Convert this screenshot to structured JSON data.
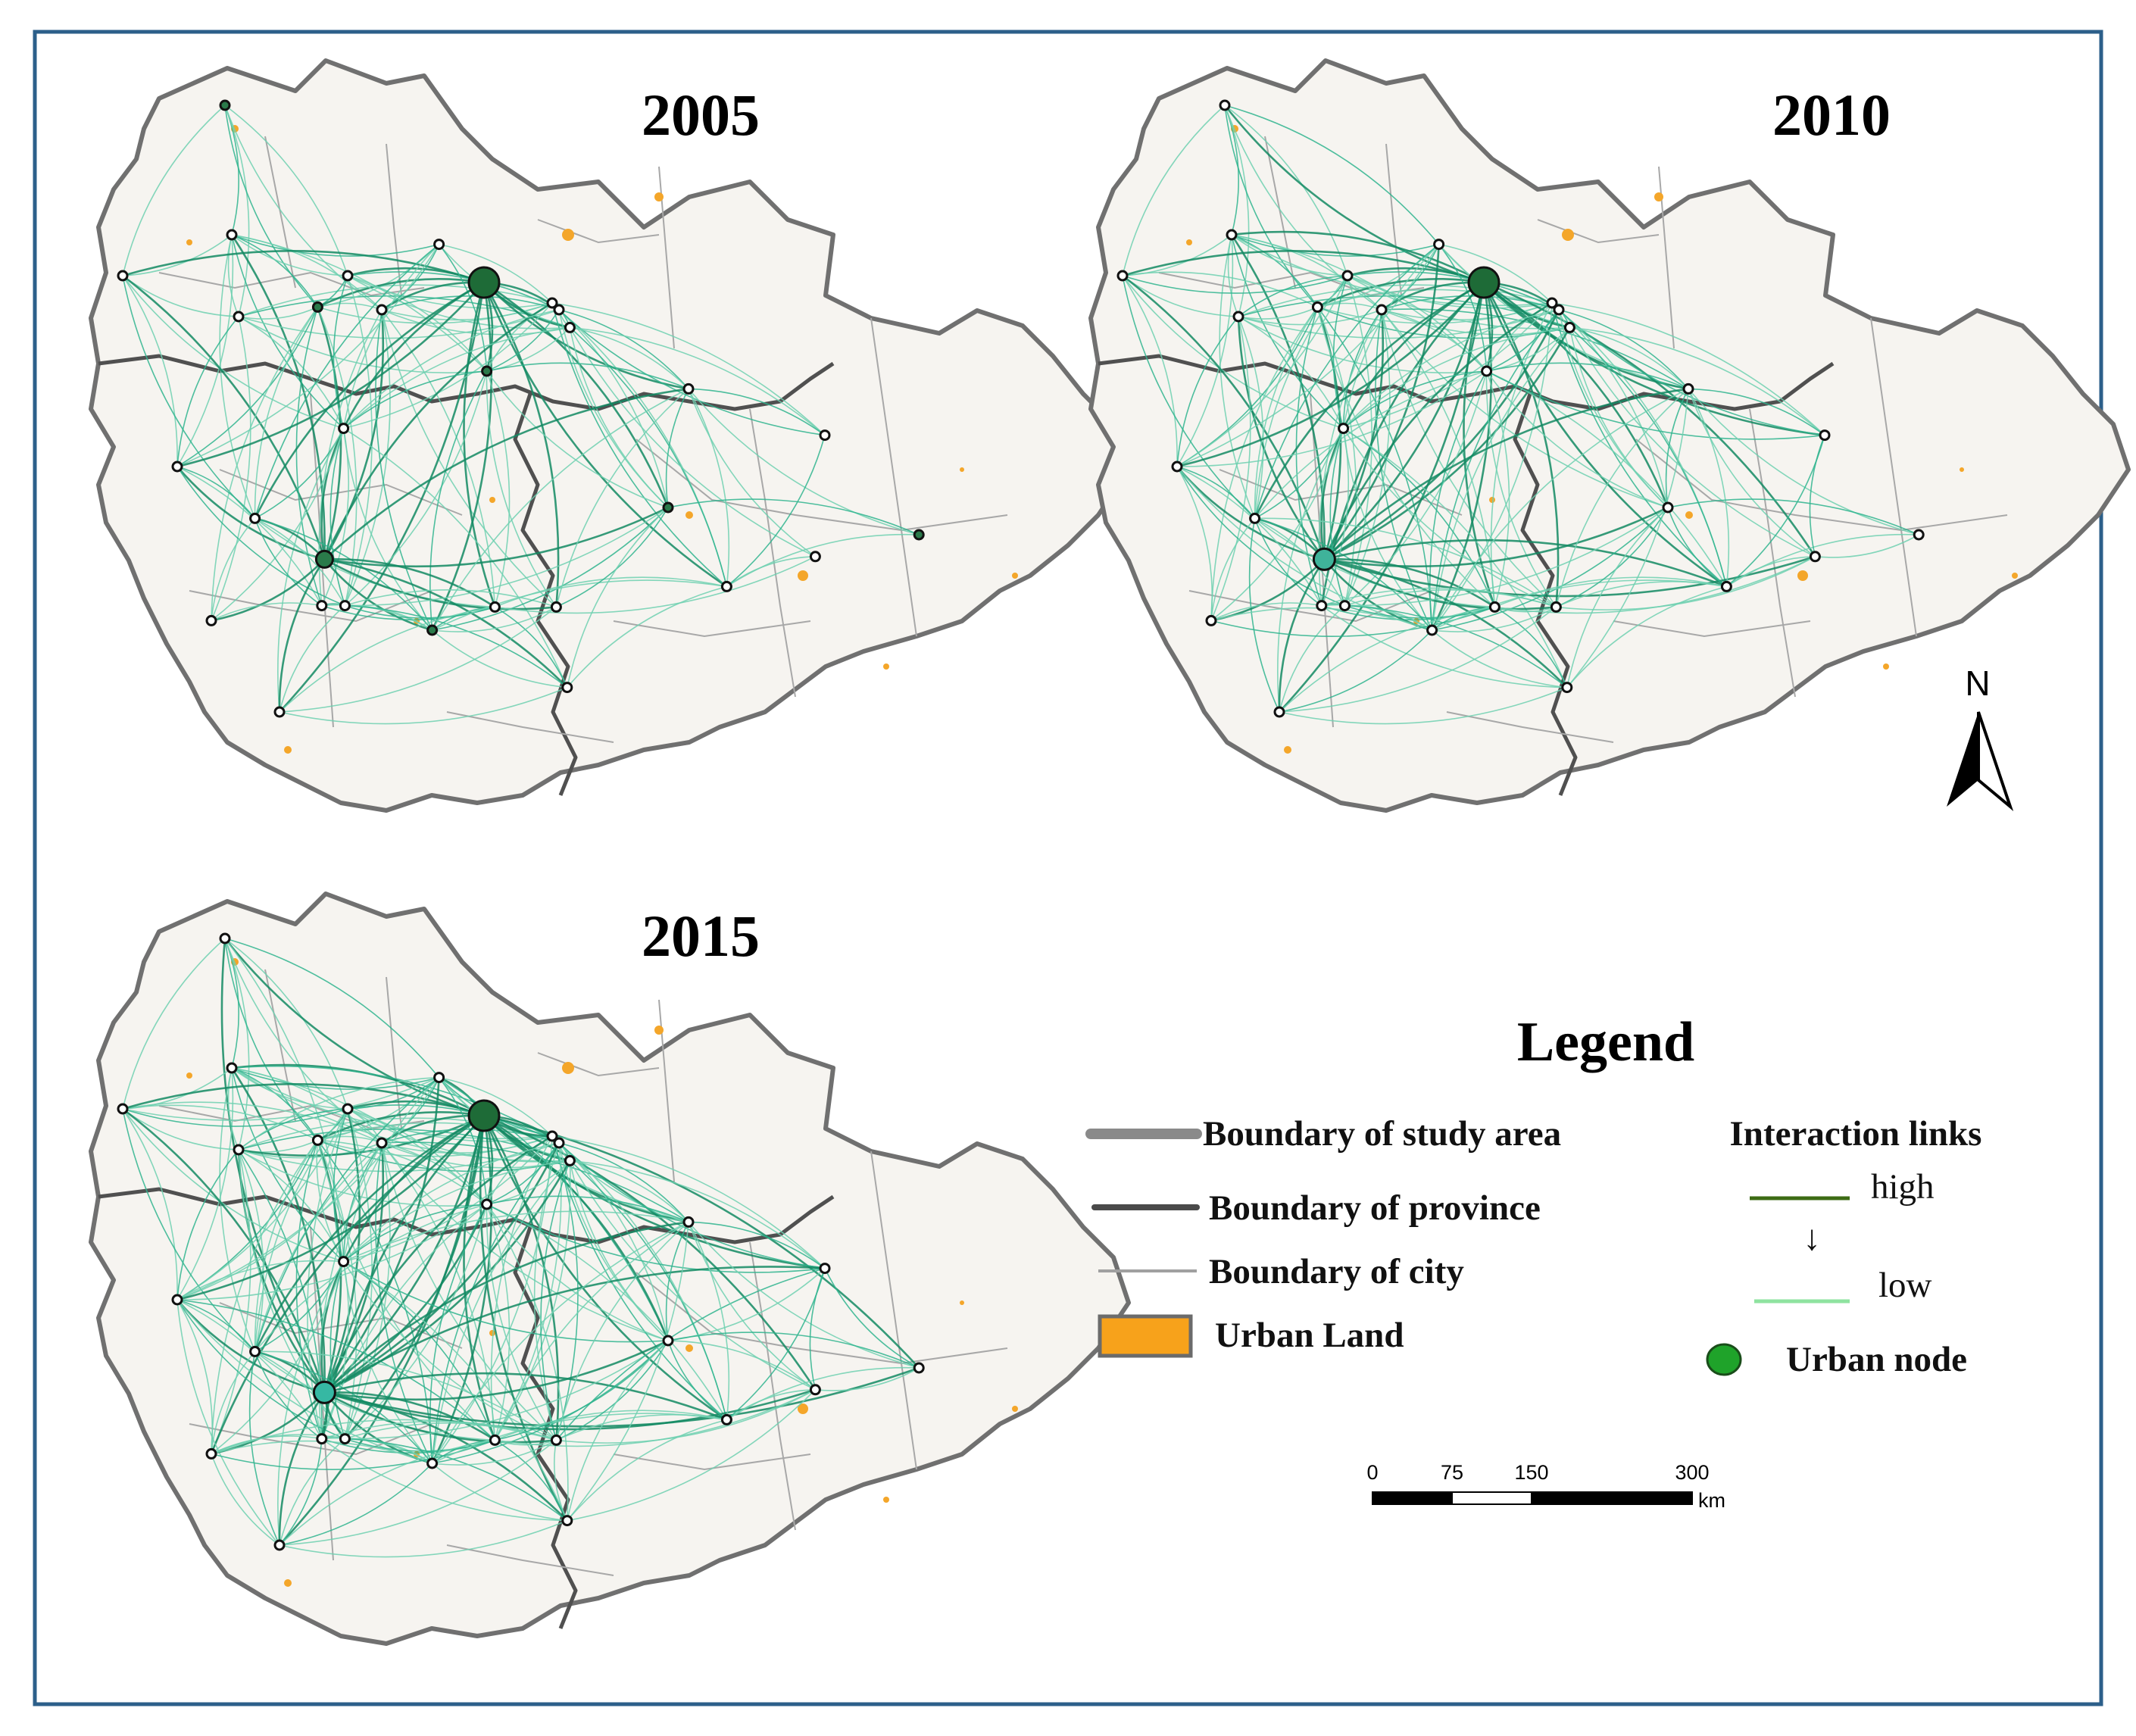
{
  "figure": {
    "panels": [
      {
        "year": "2005",
        "hub_colors": {
          "major": "#1e6b37",
          "secondary": "#2a7a4a"
        },
        "link_strength": 0.55
      },
      {
        "year": "2010",
        "hub_colors": {
          "major": "#1e6b37",
          "secondary": "#3fb39a"
        },
        "link_strength": 0.75
      },
      {
        "year": "2015",
        "hub_colors": {
          "major": "#1e6b37",
          "secondary": "#36b8a3"
        },
        "link_strength": 1.0
      }
    ],
    "north_label": "N"
  },
  "legend": {
    "title": "Legend",
    "items": [
      {
        "label": "Boundary of study area",
        "symbol": "study-boundary",
        "color": "#8a8a8a"
      },
      {
        "label": "Boundary of province",
        "symbol": "province-boundary",
        "color": "#4a4a4a"
      },
      {
        "label": "Boundary of city",
        "symbol": "city-boundary",
        "color": "#a0a0a0"
      },
      {
        "label": "Urban Land",
        "symbol": "urban-land",
        "color": "#f7a21b"
      }
    ],
    "links_title": "Interaction links",
    "link_high": {
      "label": "high",
      "color": "#3d6b14"
    },
    "link_arrow": "↓",
    "link_low": {
      "label": "low",
      "color": "#8fe3a0"
    },
    "node": {
      "label": "Urban node",
      "color": "#1fa32a"
    }
  },
  "scale_bar": {
    "ticks": [
      "0",
      "75",
      "150",
      "300"
    ],
    "unit": "km"
  }
}
